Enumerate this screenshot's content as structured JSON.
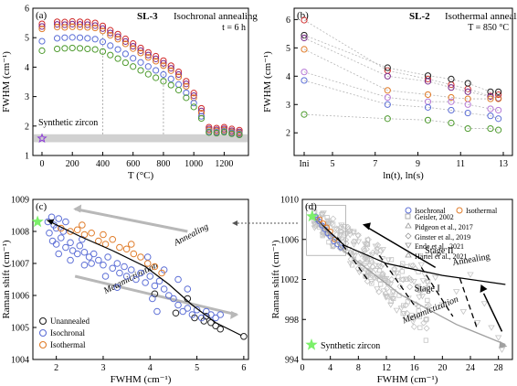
{
  "figure": {
    "panels": [
      {
        "id": "a",
        "label": "(a)",
        "sample": "SL-3",
        "title": "Isochronal annealing",
        "subtitle": "t = 6 h",
        "xlabel": "T (°C)",
        "ylabel": "FWHM (cm⁻¹)",
        "synthetic_text": "Synthetic zircon"
      },
      {
        "id": "b",
        "label": "(b)",
        "sample": "SL-2",
        "title": "Isothermal annealing",
        "subtitle": "T = 850 °C",
        "xlabel": "ln(t), ln(s)",
        "ylabel": "FWHM (cm⁻¹)"
      },
      {
        "id": "c",
        "label": "(c)",
        "xlabel": "FWHM (cm⁻¹)",
        "ylabel": "Raman shift (cm⁻¹)",
        "annotations": [
          "Annealing",
          "Metamictization"
        ],
        "legend": [
          "Unannealed",
          "Isochronal",
          "Isothermal"
        ]
      },
      {
        "id": "d",
        "label": "(d)",
        "xlabel": "FWHM (cm⁻¹)",
        "ylabel": "Raman shift (cm⁻¹)",
        "annotations": [
          "Stage II",
          "Annealing",
          "Stage I",
          "Metamictization"
        ],
        "legend": [
          "Isochronal",
          "Isothermal",
          "Geisler, 2002",
          "Pidgeon et al., 2017",
          "Ginster et al., 2019",
          "Ende et al., 2021",
          "Härtel et al., 2021"
        ],
        "synthetic_text": "Synthetic zircon"
      }
    ],
    "colors": {
      "c1": "#d12c2c",
      "c2": "#7a2a8a",
      "c3": "#e07c2a",
      "c4": "#5d6fd6",
      "c5": "#4d9a2d",
      "c6": "#b77ad6",
      "gray": "#bdbdbd",
      "unannealed": "#222222",
      "synthetic": "#7cf06a"
    }
  },
  "chart_data": [
    {
      "type": "scatter",
      "panel": "a",
      "title": "Isochronal annealing",
      "xlabel": "T (°C)",
      "ylabel": "FWHM (cm⁻¹)",
      "xlim": [
        -60,
        1360
      ],
      "ylim": [
        1,
        6
      ],
      "xticks": [
        0,
        200,
        400,
        600,
        800,
        1000,
        1200
      ],
      "yticks": [
        1,
        2,
        3,
        4,
        5,
        6
      ],
      "x": [
        0,
        100,
        150,
        200,
        250,
        300,
        350,
        400,
        450,
        500,
        550,
        600,
        650,
        700,
        750,
        800,
        850,
        900,
        950,
        1000,
        1050,
        1100,
        1150,
        1200,
        1250,
        1300
      ],
      "series": [
        {
          "color": "c1",
          "values": [
            5.47,
            5.54,
            5.53,
            5.55,
            5.54,
            5.53,
            5.5,
            5.4,
            5.25,
            5.12,
            4.96,
            4.8,
            4.65,
            4.5,
            4.37,
            4.22,
            4.05,
            3.84,
            3.52,
            3.12,
            2.6,
            1.96,
            1.93,
            1.96,
            1.9,
            1.86
          ]
        },
        {
          "color": "c2",
          "values": [
            5.38,
            5.45,
            5.44,
            5.46,
            5.45,
            5.44,
            5.41,
            5.31,
            5.16,
            5.03,
            4.87,
            4.71,
            4.56,
            4.41,
            4.28,
            4.13,
            3.96,
            3.75,
            3.43,
            3.03,
            2.51,
            1.9,
            1.87,
            1.9,
            1.84,
            1.8
          ]
        },
        {
          "color": "c3",
          "values": [
            5.3,
            5.36,
            5.35,
            5.37,
            5.36,
            5.35,
            5.33,
            5.23,
            5.08,
            4.95,
            4.79,
            4.63,
            4.48,
            4.33,
            4.2,
            4.05,
            3.88,
            3.67,
            3.35,
            2.96,
            2.44,
            1.86,
            1.83,
            1.86,
            1.8,
            1.76
          ]
        },
        {
          "color": "c4",
          "values": [
            4.88,
            4.98,
            5.0,
            5.01,
            5.0,
            4.98,
            4.95,
            4.86,
            4.73,
            4.6,
            4.45,
            4.3,
            4.16,
            4.02,
            3.89,
            3.75,
            3.6,
            3.41,
            3.13,
            2.78,
            2.33,
            1.81,
            1.79,
            1.82,
            1.77,
            1.73
          ]
        },
        {
          "color": "c5",
          "values": [
            4.56,
            4.62,
            4.64,
            4.65,
            4.64,
            4.62,
            4.6,
            4.53,
            4.41,
            4.29,
            4.15,
            4.02,
            3.89,
            3.76,
            3.64,
            3.52,
            3.39,
            3.22,
            2.96,
            2.65,
            2.26,
            1.78,
            1.76,
            1.79,
            1.74,
            1.7
          ]
        }
      ],
      "synthetic_zircon": {
        "x": 0,
        "y": 1.58
      }
    },
    {
      "type": "scatter",
      "panel": "b",
      "title": "Isothermal annealing",
      "xlabel": "ln(t), ln(s)",
      "ylabel": "FWHM (cm⁻¹)",
      "ylim": [
        1.2,
        6.4
      ],
      "xticks": [
        "Ini",
        "5",
        "7",
        "9",
        "11",
        "13"
      ],
      "yticks": [
        2,
        3,
        4,
        5,
        6
      ],
      "x": [
        "Ini",
        7.58,
        9.47,
        10.56,
        11.34,
        12.4,
        12.77
      ],
      "series": [
        {
          "color": "c1",
          "values": [
            5.98,
            4.2,
            3.9,
            3.7,
            3.55,
            3.3,
            3.35
          ]
        },
        {
          "color": "unannealed",
          "values": [
            5.45,
            4.3,
            4.02,
            3.9,
            3.75,
            3.45,
            3.45
          ]
        },
        {
          "color": "c2",
          "values": [
            5.35,
            4.0,
            3.82,
            3.6,
            3.45,
            3.28,
            3.22
          ]
        },
        {
          "color": "c3",
          "values": [
            4.95,
            3.5,
            3.35,
            3.25,
            3.2,
            3.2,
            3.2
          ]
        },
        {
          "color": "c6",
          "values": [
            4.15,
            3.25,
            3.1,
            3.1,
            3.0,
            2.85,
            2.8
          ]
        },
        {
          "color": "c4",
          "values": [
            3.85,
            3.0,
            2.9,
            2.8,
            2.7,
            2.6,
            2.5
          ]
        },
        {
          "color": "c5",
          "values": [
            2.65,
            2.5,
            2.45,
            2.35,
            2.15,
            2.15,
            2.1
          ]
        }
      ]
    },
    {
      "type": "scatter",
      "panel": "c",
      "xlabel": "FWHM (cm⁻¹)",
      "ylabel": "Raman shift (cm⁻¹)",
      "xlim": [
        1.5,
        6.1
      ],
      "ylim": [
        1004,
        1009
      ],
      "xticks": [
        2,
        3,
        4,
        5,
        6
      ],
      "yticks": [
        1004,
        1005,
        1006,
        1007,
        1008,
        1009
      ],
      "series": [
        {
          "name": "Unannealed",
          "color": "unannealed",
          "points": [
            [
              4.1,
              1006.05
            ],
            [
              4.55,
              1005.45
            ],
            [
              4.95,
              1005.3
            ],
            [
              5.15,
              1005.2
            ],
            [
              5.3,
              1005.15
            ],
            [
              5.4,
              1005.05
            ],
            [
              5.5,
              1004.95
            ],
            [
              6.0,
              1004.72
            ],
            [
              4.8,
              1005.9
            ],
            [
              5.2,
              1005.35
            ]
          ]
        },
        {
          "name": "Isochronal",
          "color": "c4",
          "points": [
            [
              1.82,
              1008.3
            ],
            [
              1.9,
              1008.45
            ],
            [
              1.95,
              1008.2
            ],
            [
              2.0,
              1008.1
            ],
            [
              2.05,
              1008.4
            ],
            [
              1.85,
              1007.95
            ],
            [
              1.92,
              1007.7
            ],
            [
              2.0,
              1007.6
            ],
            [
              2.1,
              1007.8
            ],
            [
              2.15,
              1008.0
            ],
            [
              2.2,
              1007.5
            ],
            [
              2.3,
              1007.65
            ],
            [
              2.35,
              1007.4
            ],
            [
              2.45,
              1007.3
            ],
            [
              2.5,
              1007.55
            ],
            [
              2.6,
              1007.35
            ],
            [
              2.7,
              1007.2
            ],
            [
              2.75,
              1007.0
            ],
            [
              2.8,
              1007.3
            ],
            [
              2.9,
              1007.1
            ],
            [
              3.0,
              1006.95
            ],
            [
              3.1,
              1007.2
            ],
            [
              3.2,
              1006.85
            ],
            [
              3.3,
              1007.0
            ],
            [
              3.35,
              1006.7
            ],
            [
              3.45,
              1006.9
            ],
            [
              3.5,
              1006.6
            ],
            [
              3.6,
              1006.8
            ],
            [
              3.7,
              1006.5
            ],
            [
              3.8,
              1006.7
            ],
            [
              3.9,
              1006.4
            ],
            [
              4.0,
              1006.6
            ],
            [
              4.1,
              1006.3
            ],
            [
              4.2,
              1006.45
            ],
            [
              4.3,
              1006.2
            ],
            [
              4.4,
              1006.0
            ],
            [
              4.5,
              1005.9
            ],
            [
              4.6,
              1005.7
            ],
            [
              4.7,
              1005.5
            ],
            [
              4.8,
              1005.6
            ],
            [
              4.9,
              1005.4
            ],
            [
              5.0,
              1005.55
            ],
            [
              5.1,
              1005.3
            ],
            [
              5.2,
              1005.5
            ],
            [
              5.3,
              1005.4
            ],
            [
              5.4,
              1005.3
            ],
            [
              5.5,
              1005.4
            ],
            [
              3.95,
              1007.2
            ],
            [
              4.3,
              1006.8
            ],
            [
              4.6,
              1006.5
            ],
            [
              4.8,
              1006.2
            ],
            [
              2.3,
              1007.1
            ],
            [
              2.6,
              1006.95
            ],
            [
              3.05,
              1006.6
            ],
            [
              3.3,
              1006.25
            ],
            [
              4.05,
              1005.9
            ],
            [
              2.2,
              1008.3
            ],
            [
              2.55,
              1007.75
            ],
            [
              4.15,
              1005.5
            ],
            [
              2.05,
              1007.3
            ]
          ]
        },
        {
          "name": "Isothermal",
          "color": "c3",
          "points": [
            [
              2.1,
              1008.1
            ],
            [
              2.3,
              1008.0
            ],
            [
              2.45,
              1008.05
            ],
            [
              2.6,
              1007.9
            ],
            [
              2.75,
              1007.95
            ],
            [
              2.9,
              1007.7
            ],
            [
              3.05,
              1007.6
            ],
            [
              3.2,
              1007.75
            ],
            [
              3.35,
              1007.5
            ],
            [
              3.5,
              1007.45
            ],
            [
              3.65,
              1007.3
            ],
            [
              3.8,
              1007.2
            ],
            [
              3.95,
              1007.0
            ],
            [
              4.1,
              1006.9
            ],
            [
              4.25,
              1006.7
            ],
            [
              3.0,
              1007.9
            ],
            [
              2.55,
              1008.2
            ],
            [
              3.6,
              1007.6
            ]
          ]
        }
      ],
      "trend_line": [
        [
          1.8,
          1008.35
        ],
        [
          2.5,
          1007.85
        ],
        [
          3.2,
          1007.4
        ],
        [
          3.9,
          1006.9
        ],
        [
          4.4,
          1006.35
        ],
        [
          4.9,
          1005.7
        ],
        [
          5.4,
          1005.15
        ],
        [
          5.95,
          1004.75
        ]
      ],
      "synthetic_zircon": {
        "x": 1.6,
        "y": 1008.3
      }
    },
    {
      "type": "scatter",
      "panel": "d",
      "xlabel": "FWHM (cm⁻¹)",
      "ylabel": "Raman shift (cm⁻¹)",
      "xlim": [
        0,
        30
      ],
      "ylim": [
        994,
        1010
      ],
      "xticks": [
        0,
        4,
        8,
        12,
        16,
        20,
        24,
        28
      ],
      "yticks": [
        994,
        998,
        1002,
        1006,
        1010
      ],
      "synthetic_zircon": {
        "x": 1.4,
        "y": 1008.3
      },
      "annealing_line": [
        [
          1.5,
          1008.3
        ],
        [
          6,
          1005.4
        ],
        [
          12,
          1003.6
        ],
        [
          20,
          1002.4
        ],
        [
          29,
          1001.5
        ]
      ],
      "metamictization_line": [
        [
          1.5,
          1008.4
        ],
        [
          6,
          1004.8
        ],
        [
          14,
          1000.5
        ],
        [
          22,
          997.5
        ],
        [
          29,
          995.5
        ]
      ]
    }
  ]
}
